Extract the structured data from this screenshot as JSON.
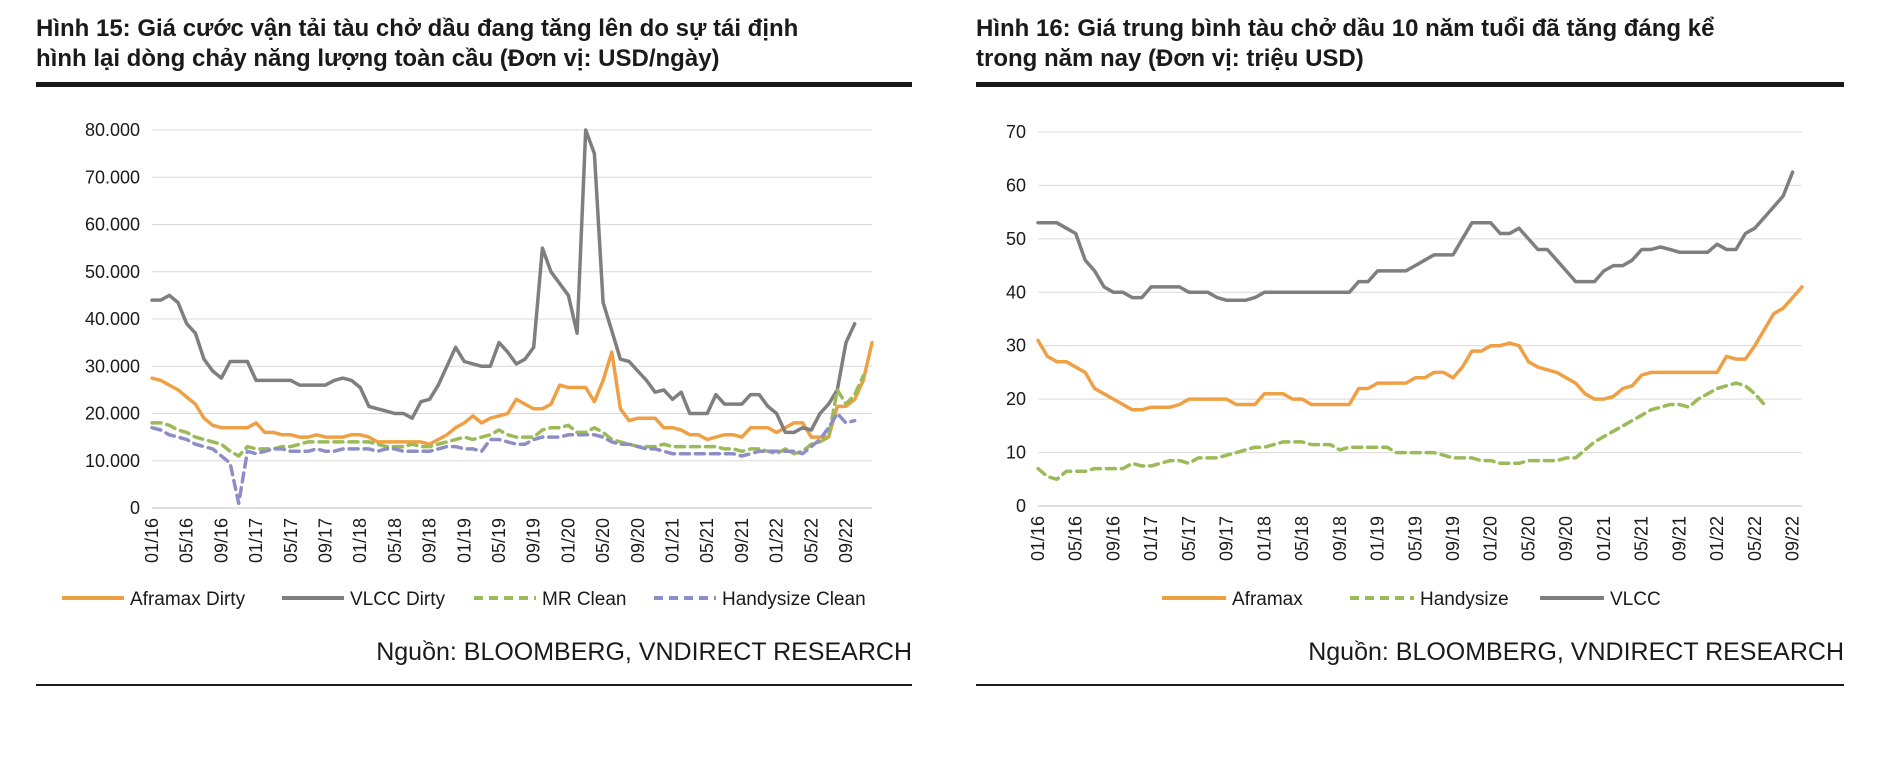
{
  "figures": [
    {
      "title_line1": "Hình 15: Giá cước vận tải tàu chở dầu đang tăng lên do sự tái định",
      "title_line2": "hình lại dòng chảy năng lượng toàn cầu (Đơn vị: USD/ngày)",
      "source": "Nguồn: BLOOMBERG, VNDIRECT RESEARCH"
    },
    {
      "title_line1": "Hình 16: Giá trung bình tàu chở dầu 10 năm tuổi đã tăng đáng kể",
      "title_line2": "trong năm nay (Đơn vị: triệu USD)",
      "source": "Nguồn: BLOOMBERG, VNDIRECT RESEARCH"
    }
  ],
  "chart_data": [
    {
      "type": "line",
      "title": "Hình 15: Giá cước vận tải tàu chở dầu đang tăng lên do sự tái định hình lại dòng chảy năng lượng toàn cầu (Đơn vị: USD/ngày)",
      "xlabel": "",
      "ylabel": "",
      "ylim": [
        0,
        80000
      ],
      "ytick_values": [
        0,
        10000,
        20000,
        30000,
        40000,
        50000,
        60000,
        70000,
        80000
      ],
      "ytick_labels": [
        "0",
        "10.000",
        "20.000",
        "30.000",
        "40.000",
        "50.000",
        "60.000",
        "70.000",
        "80.000"
      ],
      "xtick_labels": [
        "01/16",
        "05/16",
        "09/16",
        "01/17",
        "05/17",
        "09/17",
        "01/18",
        "05/18",
        "09/18",
        "01/19",
        "05/19",
        "09/19",
        "01/20",
        "05/20",
        "09/20",
        "01/21",
        "05/21",
        "09/21",
        "01/22",
        "05/22",
        "09/22"
      ],
      "x_start": "2016-01",
      "x_step": "month",
      "grid": true,
      "legend_position": "bottom",
      "series": [
        {
          "name": "Aframax Dirty",
          "color": "#f0a044",
          "dash": "solid",
          "values": [
            27500,
            27000,
            26000,
            25000,
            23500,
            22000,
            19000,
            17500,
            17000,
            17000,
            17000,
            17000,
            18000,
            16000,
            16000,
            15500,
            15500,
            15000,
            15000,
            15500,
            15000,
            15000,
            15000,
            15500,
            15500,
            15000,
            14000,
            14000,
            14000,
            14000,
            14000,
            14000,
            13500,
            14500,
            15500,
            17000,
            18000,
            19500,
            18000,
            19000,
            19500,
            20000,
            23000,
            22000,
            21000,
            21000,
            22000,
            26000,
            25500,
            25500,
            25500,
            22500,
            27000,
            33000,
            21000,
            18500,
            19000,
            19000,
            19000,
            17000,
            17000,
            16500,
            15500,
            15500,
            14500,
            15000,
            15500,
            15500,
            15000,
            17000,
            17000,
            17000,
            16000,
            17000,
            18000,
            18000,
            15000,
            15000,
            15000,
            21500,
            21500,
            23000,
            27000,
            35000
          ]
        },
        {
          "name": "VLCC Dirty",
          "color": "#7f7f7f",
          "dash": "solid",
          "values": [
            44000,
            44000,
            45000,
            43500,
            39000,
            37000,
            31500,
            29000,
            27500,
            31000,
            31000,
            31000,
            27000,
            27000,
            27000,
            27000,
            27000,
            26000,
            26000,
            26000,
            26000,
            27000,
            27500,
            27000,
            25500,
            21500,
            21000,
            20500,
            20000,
            20000,
            19000,
            22500,
            23000,
            26000,
            30000,
            34000,
            31000,
            30500,
            30000,
            30000,
            35000,
            33000,
            30500,
            31500,
            34000,
            55000,
            50000,
            47500,
            45000,
            37000,
            80000,
            75000,
            43500,
            37500,
            31500,
            31000,
            29000,
            27000,
            24500,
            25000,
            23000,
            24500,
            20000,
            20000,
            20000,
            24000,
            22000,
            22000,
            22000,
            24000,
            24000,
            21500,
            20000,
            16000,
            16000,
            17000,
            16500,
            20000,
            22000,
            25000,
            35000,
            39000
          ]
        },
        {
          "name": "MR Clean",
          "color": "#9bbb59",
          "dash": "dashed",
          "values": [
            18000,
            18000,
            17500,
            16500,
            16000,
            15000,
            14500,
            14000,
            13500,
            12000,
            11000,
            13000,
            12500,
            12500,
            12500,
            13000,
            13000,
            13500,
            14000,
            14000,
            14000,
            14000,
            14000,
            14000,
            14000,
            14000,
            13500,
            13000,
            13000,
            13000,
            13500,
            13000,
            13000,
            13500,
            14000,
            14500,
            15000,
            14500,
            15000,
            15500,
            16500,
            15500,
            15000,
            15000,
            15000,
            16500,
            17000,
            17000,
            17500,
            16000,
            16000,
            17000,
            16000,
            14500,
            14000,
            13500,
            13000,
            13000,
            13000,
            13500,
            13000,
            13000,
            13000,
            13000,
            13000,
            13000,
            12500,
            12500,
            12000,
            12500,
            12500,
            12000,
            11500,
            12500,
            11500,
            12000,
            13500,
            14000,
            15000,
            25000,
            22000,
            24000,
            28000
          ]
        },
        {
          "name": "Handysize Clean",
          "color": "#8e8ec6",
          "dash": "dashed",
          "values": [
            17000,
            16500,
            15500,
            15000,
            14500,
            13500,
            13000,
            12500,
            11000,
            9500,
            1000,
            12000,
            11500,
            12000,
            12500,
            12500,
            12000,
            12000,
            12000,
            12500,
            12000,
            12000,
            12500,
            12500,
            12500,
            12500,
            12000,
            12500,
            12500,
            12000,
            12000,
            12000,
            12000,
            12500,
            13000,
            13000,
            12500,
            12500,
            12000,
            14500,
            14500,
            14000,
            13500,
            13500,
            14500,
            15000,
            15000,
            15000,
            15500,
            15500,
            15500,
            15500,
            15000,
            14000,
            13500,
            13500,
            13000,
            12500,
            12500,
            12000,
            11500,
            11500,
            11500,
            11500,
            11500,
            11500,
            11500,
            11500,
            11000,
            11500,
            12000,
            12000,
            12000,
            12000,
            12000,
            11500,
            13000,
            14500,
            17000,
            20000,
            18000,
            18500
          ]
        }
      ]
    },
    {
      "type": "line",
      "title": "Hình 16: Giá trung bình tàu chở dầu 10 năm tuổi đã tăng đáng kể trong năm nay (Đơn vị: triệu USD)",
      "xlabel": "",
      "ylabel": "",
      "ylim": [
        0,
        70
      ],
      "ytick_values": [
        0,
        10,
        20,
        30,
        40,
        50,
        60,
        70
      ],
      "ytick_labels": [
        "0",
        "10",
        "20",
        "30",
        "40",
        "50",
        "60",
        "70"
      ],
      "xtick_labels": [
        "01/16",
        "05/16",
        "09/16",
        "01/17",
        "05/17",
        "09/17",
        "01/18",
        "05/18",
        "09/18",
        "01/19",
        "05/19",
        "09/19",
        "01/20",
        "05/20",
        "09/20",
        "01/21",
        "05/21",
        "09/21",
        "01/22",
        "05/22",
        "09/22"
      ],
      "x_start": "2016-01",
      "x_step": "month",
      "grid": true,
      "legend_position": "bottom",
      "series": [
        {
          "name": "Aframax",
          "color": "#f0a044",
          "dash": "solid",
          "values": [
            31,
            28,
            27,
            27,
            26,
            25,
            22,
            21,
            20,
            19,
            18,
            18,
            18.5,
            18.5,
            18.5,
            19,
            20,
            20,
            20,
            20,
            20,
            19,
            19,
            19,
            21,
            21,
            21,
            20,
            20,
            19,
            19,
            19,
            19,
            19,
            22,
            22,
            23,
            23,
            23,
            23,
            24,
            24,
            25,
            25,
            24,
            26,
            29,
            29,
            30,
            30,
            30.5,
            30,
            27,
            26,
            25.5,
            25,
            24,
            23,
            21,
            20,
            20,
            20.5,
            22,
            22.5,
            24.5,
            25,
            25,
            25,
            25,
            25,
            25,
            25,
            25,
            28,
            27.5,
            27.5,
            30,
            33,
            36,
            37,
            39,
            41
          ]
        },
        {
          "name": "Handysize",
          "color": "#9bbb59",
          "dash": "dashed",
          "values": [
            7,
            5.5,
            5,
            6.5,
            6.5,
            6.5,
            7,
            7,
            7,
            7,
            8,
            7.5,
            7.5,
            8,
            8.5,
            8.5,
            8,
            9,
            9,
            9,
            9.5,
            10,
            10.5,
            11,
            11,
            11.5,
            12,
            12,
            12,
            11.5,
            11.5,
            11.5,
            10.5,
            11,
            11,
            11,
            11,
            11,
            10,
            10,
            10,
            10,
            10,
            9.5,
            9,
            9,
            9,
            8.5,
            8.5,
            8,
            8,
            8,
            8.5,
            8.5,
            8.5,
            8.5,
            9,
            9,
            10.5,
            12,
            13,
            14,
            15,
            16,
            17,
            18,
            18.5,
            19,
            19,
            18.5,
            20,
            21,
            22,
            22.5,
            23,
            22.5,
            21,
            19
          ]
        },
        {
          "name": "VLCC",
          "color": "#7f7f7f",
          "dash": "solid",
          "values": [
            53,
            53,
            53,
            52,
            51,
            46,
            44,
            41,
            40,
            40,
            39,
            39,
            41,
            41,
            41,
            41,
            40,
            40,
            40,
            39,
            38.5,
            38.5,
            38.5,
            39,
            40,
            40,
            40,
            40,
            40,
            40,
            40,
            40,
            40,
            40,
            42,
            42,
            44,
            44,
            44,
            44,
            45,
            46,
            47,
            47,
            47,
            50,
            53,
            53,
            53,
            51,
            51,
            52,
            50,
            48,
            48,
            46,
            44,
            42,
            42,
            42,
            44,
            45,
            45,
            46,
            48,
            48,
            48.5,
            48,
            47.5,
            47.5,
            47.5,
            47.5,
            49,
            48,
            48,
            51,
            52,
            54,
            56,
            58,
            62.5
          ]
        }
      ]
    }
  ]
}
